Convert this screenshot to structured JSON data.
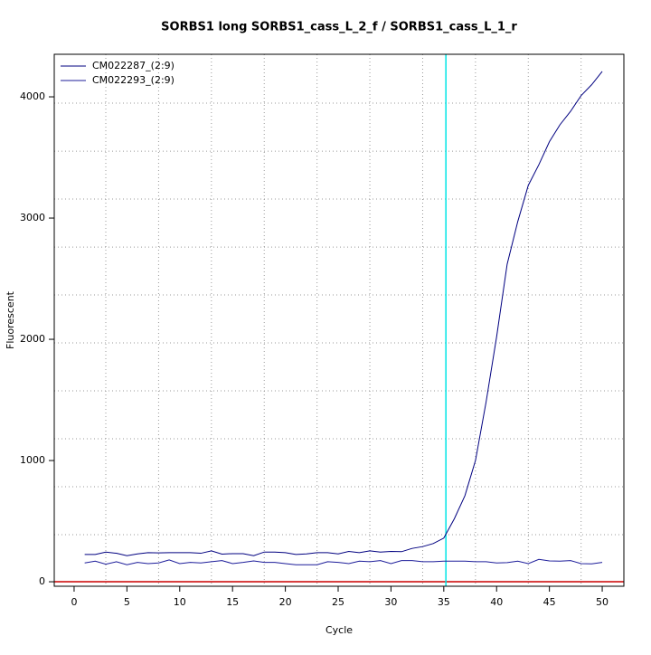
{
  "chart_data": {
    "type": "line",
    "title": "SORBS1 long SORBS1_cass_L_2_f / SORBS1_cass_L_1_r",
    "xlabel": "Cycle",
    "ylabel": "Fluorescent",
    "x": [
      1,
      2,
      3,
      4,
      5,
      6,
      7,
      8,
      9,
      10,
      11,
      12,
      13,
      14,
      15,
      16,
      17,
      18,
      19,
      20,
      21,
      22,
      23,
      24,
      25,
      26,
      27,
      28,
      29,
      30,
      31,
      32,
      33,
      34,
      35,
      36,
      37,
      38,
      39,
      40,
      41,
      42,
      43,
      44,
      45,
      46,
      47,
      48,
      49,
      50
    ],
    "series": [
      {
        "name": "CM022287_(2:9)",
        "color": "#000080",
        "values": [
          225,
          225,
          245,
          235,
          215,
          230,
          240,
          238,
          240,
          240,
          240,
          235,
          255,
          228,
          232,
          232,
          215,
          245,
          245,
          240,
          225,
          230,
          240,
          240,
          230,
          250,
          240,
          255,
          245,
          250,
          248,
          275,
          290,
          315,
          360,
          520,
          710,
          1000,
          1480,
          2020,
          2620,
          2970,
          3270,
          3440,
          3630,
          3770,
          3880,
          4010,
          4100,
          4210
        ]
      },
      {
        "name": "CM022293_(2:9)",
        "color": "#1c1c9a",
        "values": [
          155,
          170,
          145,
          165,
          140,
          160,
          150,
          155,
          180,
          150,
          160,
          155,
          165,
          175,
          150,
          160,
          172,
          160,
          160,
          150,
          140,
          140,
          140,
          165,
          160,
          150,
          170,
          165,
          175,
          150,
          175,
          175,
          165,
          165,
          170,
          170,
          170,
          165,
          165,
          155,
          158,
          170,
          150,
          185,
          172,
          170,
          175,
          150,
          148,
          160
        ]
      }
    ],
    "xlim": [
      -1.88,
      52.05
    ],
    "ylim": [
      -37,
      4351
    ],
    "xticks": [
      0,
      5,
      10,
      15,
      20,
      25,
      30,
      35,
      40,
      45,
      50
    ],
    "yticks": [
      0,
      1000,
      2000,
      3000,
      4000
    ],
    "grid": true,
    "xgrid": [
      3,
      8,
      13,
      18,
      23,
      28,
      33,
      38,
      43,
      48
    ],
    "ygrid": [
      388,
      784,
      1179,
      1575,
      1970,
      2366,
      2761,
      3157,
      3552,
      3948
    ],
    "threshold_cycle": 35.2,
    "threshold_color": "#00e5e5",
    "baseline": 0,
    "baseline_color": "#cc0000",
    "legend": "top-left"
  }
}
